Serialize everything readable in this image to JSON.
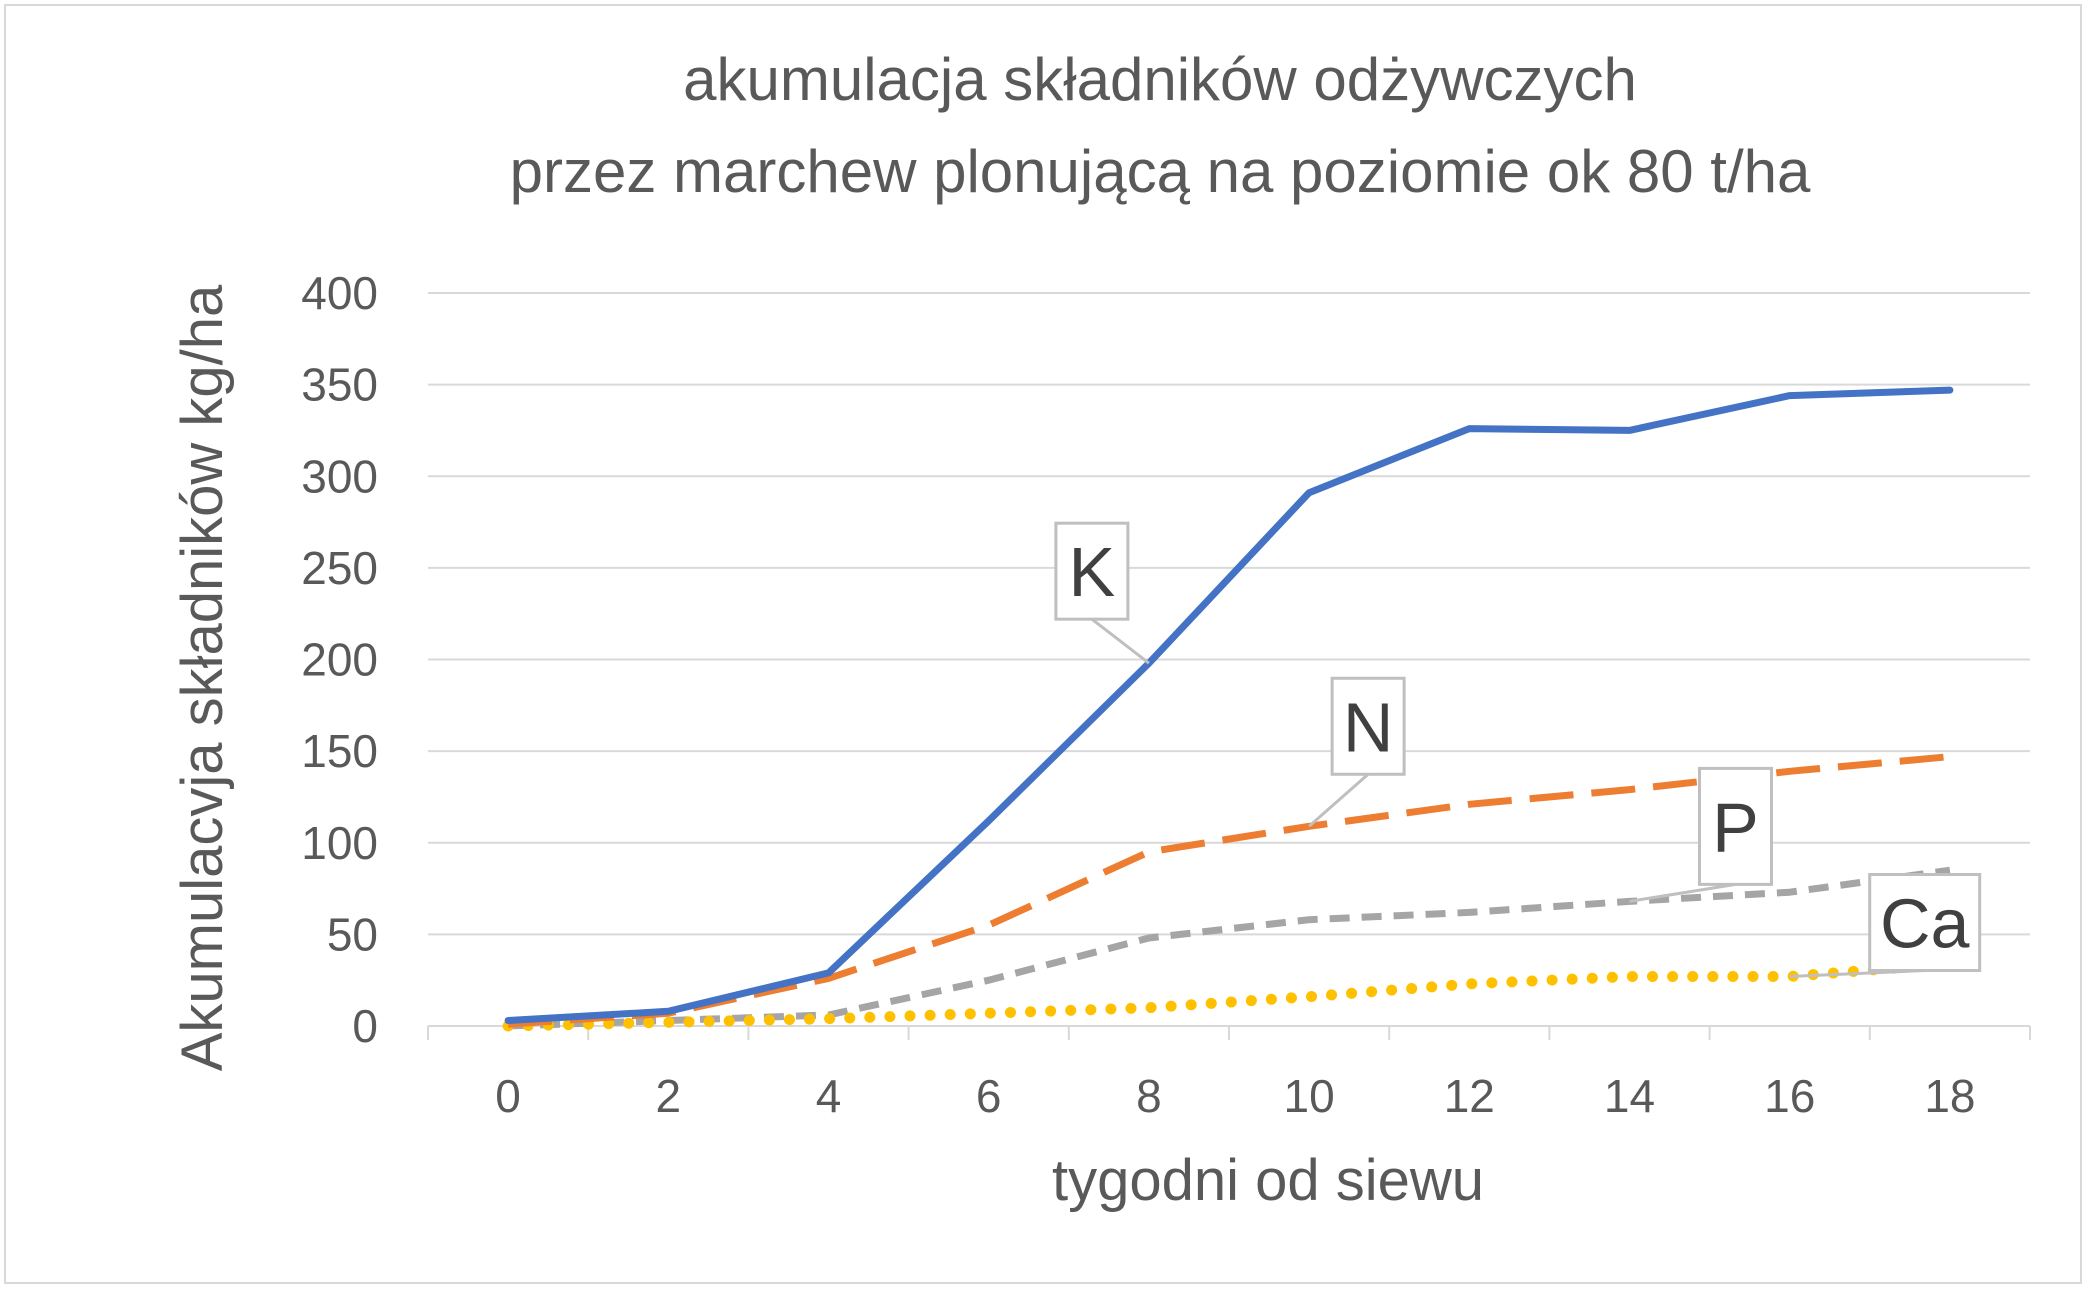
{
  "chart_data": {
    "type": "line",
    "title_lines": [
      "akumulacja składników odżywczych",
      "przez marchew plonującą na poziomie ok 80 t/ha"
    ],
    "xlabel": "tygodni od siewu",
    "ylabel": "Akumulacvja składników kg/ha",
    "x": [
      0,
      2,
      4,
      6,
      8,
      10,
      12,
      14,
      16,
      18
    ],
    "xticks": [
      "0",
      "2",
      "4",
      "6",
      "8",
      "10",
      "12",
      "14",
      "16",
      "18"
    ],
    "yticks": [
      "0",
      "50",
      "100",
      "150",
      "200",
      "250",
      "300",
      "350",
      "400"
    ],
    "ylim": [
      0,
      400
    ],
    "grid": true,
    "series": [
      {
        "name": "K",
        "color": "#4472c4",
        "style": "solid",
        "values": [
          3,
          8,
          29,
          112,
          198,
          291,
          326,
          325,
          344,
          347
        ]
      },
      {
        "name": "N",
        "color": "#ed7d31",
        "style": "long-dash",
        "values": [
          1,
          7,
          26,
          55,
          95,
          109,
          121,
          129,
          139,
          147
        ]
      },
      {
        "name": "P",
        "color": "#a5a5a5",
        "style": "dash",
        "values": [
          0,
          3,
          6,
          25,
          48,
          58,
          62,
          68,
          73,
          85
        ]
      },
      {
        "name": "Ca",
        "color": "#ffc000",
        "style": "dot",
        "values": [
          0,
          2,
          4,
          7,
          10,
          16,
          23,
          27,
          27,
          34
        ]
      }
    ],
    "callouts": [
      {
        "label": "K",
        "series": "K",
        "x": 8
      },
      {
        "label": "N",
        "series": "N",
        "x": 10
      },
      {
        "label": "P",
        "series": "P",
        "x": 14
      },
      {
        "label": "Ca",
        "series": "Ca",
        "x": 16
      }
    ]
  }
}
